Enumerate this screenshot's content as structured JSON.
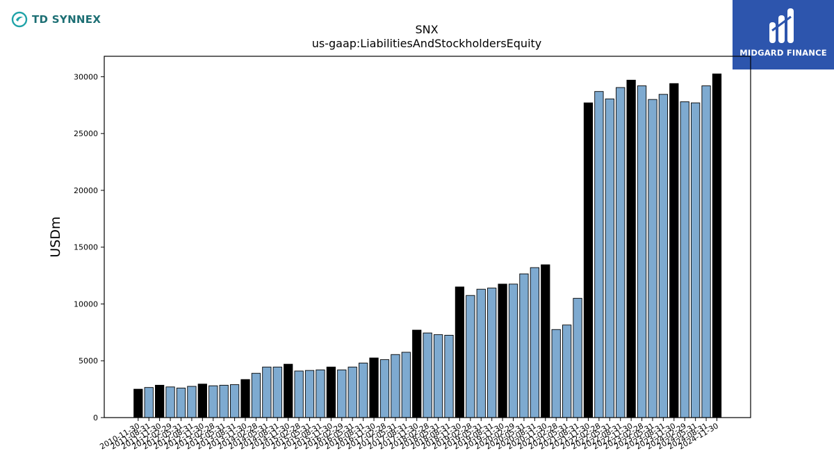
{
  "logos": {
    "left_text": "TD SYNNEX",
    "right_text": "MIDGARD FINANCE",
    "right_bg": "#2d55ad",
    "left_color": "#1d6f74"
  },
  "chart_data": {
    "type": "bar",
    "title": "SNX",
    "subtitle": "us-gaap:LiabilitiesAndStockholdersEquity",
    "ylabel": "USDm",
    "xlabel": "",
    "ylim": [
      0,
      31800
    ],
    "yticks": [
      0,
      5000,
      10000,
      15000,
      20000,
      25000,
      30000
    ],
    "grid": false,
    "colors": {
      "fiscal_year_end": "#000000",
      "quarter": "#7eaad0"
    },
    "categories": [
      "2010-11-30",
      "2011-08-31",
      "2011-11-30",
      "2012-02-29",
      "2012-05-31",
      "2012-08-31",
      "2012-11-30",
      "2013-02-28",
      "2013-05-31",
      "2013-08-31",
      "2013-11-30",
      "2014-02-28",
      "2014-05-31",
      "2014-08-31",
      "2014-11-30",
      "2015-02-28",
      "2015-05-31",
      "2015-08-31",
      "2015-11-30",
      "2016-02-29",
      "2016-05-31",
      "2016-08-31",
      "2016-11-30",
      "2017-02-28",
      "2017-05-31",
      "2017-08-31",
      "2017-11-30",
      "2018-02-28",
      "2018-05-31",
      "2018-08-31",
      "2018-11-30",
      "2019-02-28",
      "2019-05-31",
      "2019-08-31",
      "2019-11-30",
      "2020-02-29",
      "2020-05-31",
      "2020-08-31",
      "2020-11-30",
      "2021-02-28",
      "2021-05-31",
      "2021-08-31",
      "2021-11-30",
      "2022-02-28",
      "2022-05-31",
      "2022-08-31",
      "2022-11-30",
      "2023-02-28",
      "2023-05-31",
      "2023-08-31",
      "2023-11-30",
      "2024-02-29",
      "2024-05-31",
      "2024-08-31",
      "2024-11-30"
    ],
    "values": [
      2500,
      2650,
      2850,
      2700,
      2600,
      2750,
      2950,
      2800,
      2850,
      2900,
      3350,
      3900,
      4450,
      4450,
      4700,
      4100,
      4150,
      4200,
      4450,
      4200,
      4450,
      4800,
      5250,
      5100,
      5550,
      5750,
      7700,
      7450,
      7300,
      7250,
      11500,
      10750,
      11300,
      11400,
      11750,
      11750,
      12650,
      13200,
      13450,
      7750,
      8150,
      10500,
      27700,
      28700,
      28050,
      29050,
      29700,
      29200,
      28000,
      28450,
      29400,
      27800,
      27700,
      29200,
      30250
    ],
    "highlight": [
      true,
      false,
      true,
      false,
      false,
      false,
      true,
      false,
      false,
      false,
      true,
      false,
      false,
      false,
      true,
      false,
      false,
      false,
      true,
      false,
      false,
      false,
      true,
      false,
      false,
      false,
      true,
      false,
      false,
      false,
      true,
      false,
      false,
      false,
      true,
      false,
      false,
      false,
      true,
      false,
      false,
      false,
      true,
      false,
      false,
      false,
      true,
      false,
      false,
      false,
      true,
      false,
      false,
      false,
      true
    ]
  }
}
